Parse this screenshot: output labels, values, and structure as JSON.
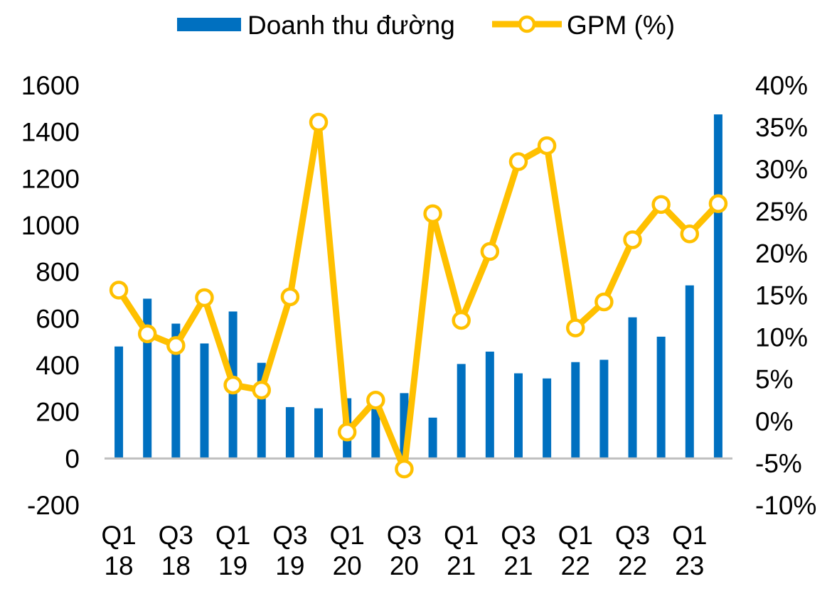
{
  "chart_data": {
    "type": "bar+line",
    "categories": [
      "Q1 18",
      "Q2 18",
      "Q3 18",
      "Q4 18",
      "Q1 19",
      "Q2 19",
      "Q3 19",
      "Q4 19",
      "Q1 20",
      "Q2 20",
      "Q3 20",
      "Q4 20",
      "Q1 21",
      "Q2 21",
      "Q3 21",
      "Q4 21",
      "Q1 22",
      "Q2 22",
      "Q3 22",
      "Q4 22",
      "Q1 23",
      "Q2 23"
    ],
    "x_tick_labels": [
      {
        "line1": "Q1",
        "line2": "18"
      },
      {
        "line1": "Q3",
        "line2": "18"
      },
      {
        "line1": "Q1",
        "line2": "19"
      },
      {
        "line1": "Q3",
        "line2": "19"
      },
      {
        "line1": "Q1",
        "line2": "20"
      },
      {
        "line1": "Q3",
        "line2": "20"
      },
      {
        "line1": "Q1",
        "line2": "21"
      },
      {
        "line1": "Q3",
        "line2": "21"
      },
      {
        "line1": "Q1",
        "line2": "22"
      },
      {
        "line1": "Q3",
        "line2": "22"
      },
      {
        "line1": "Q1",
        "line2": "23"
      }
    ],
    "series": [
      {
        "name": "Doanh thu đường",
        "kind": "bar",
        "axis": "left",
        "color": "#0070C0",
        "values": [
          480,
          685,
          578,
          493,
          630,
          410,
          220,
          215,
          258,
          225,
          280,
          175,
          405,
          458,
          365,
          343,
          413,
          423,
          605,
          522,
          742,
          1475
        ]
      },
      {
        "name": "GPM (%)",
        "kind": "line",
        "axis": "right",
        "color": "#FFC000",
        "values": [
          15.6,
          10.4,
          9.0,
          14.7,
          4.3,
          3.7,
          14.8,
          35.6,
          -1.3,
          2.5,
          -5.7,
          24.7,
          12.0,
          20.2,
          30.9,
          32.8,
          11.1,
          14.2,
          21.6,
          25.8,
          22.3,
          25.9
        ]
      }
    ],
    "y_left": {
      "ylim": [
        -200,
        1600
      ],
      "ticks": [
        1600,
        1400,
        1200,
        1000,
        800,
        600,
        400,
        200,
        0,
        -200
      ],
      "tick_labels": [
        "1600",
        "1400",
        "1200",
        "1000",
        "800",
        "600",
        "400",
        "200",
        "0",
        "-200"
      ]
    },
    "y_right": {
      "ylim": [
        -10,
        40
      ],
      "ticks": [
        40,
        35,
        30,
        25,
        20,
        15,
        10,
        5,
        0,
        -5,
        -10
      ],
      "tick_labels": [
        "40%",
        "35%",
        "30%",
        "25%",
        "20%",
        "15%",
        "10%",
        "5%",
        "0%",
        "-5%",
        "-10%"
      ]
    },
    "legend": {
      "position": "top",
      "items": [
        "Doanh thu đường",
        "GPM (%)"
      ]
    },
    "title": "",
    "grid": false
  }
}
